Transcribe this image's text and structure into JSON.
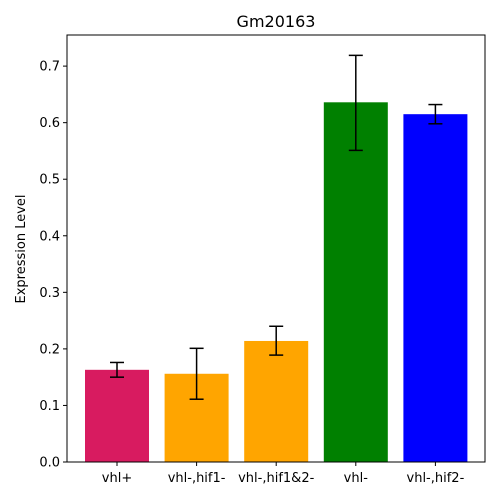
{
  "chart_data": {
    "type": "bar",
    "title": "Gm20163",
    "xlabel": "",
    "ylabel": "Expression Level",
    "ylim": [
      0,
      0.755
    ],
    "yticks": [
      0.0,
      0.1,
      0.2,
      0.3,
      0.4,
      0.5,
      0.6,
      0.7
    ],
    "ytick_labels": [
      "0.0",
      "0.1",
      "0.2",
      "0.3",
      "0.4",
      "0.5",
      "0.6",
      "0.7"
    ],
    "categories": [
      "vhl+",
      "vhl-,hif1-",
      "vhl-,hif1&2-",
      "vhl-",
      "vhl-,hif2-"
    ],
    "values": [
      0.163,
      0.156,
      0.214,
      0.636,
      0.615
    ],
    "error_low": [
      0.15,
      0.111,
      0.189,
      0.551,
      0.598
    ],
    "error_high": [
      0.176,
      0.201,
      0.24,
      0.719,
      0.632
    ],
    "colors": [
      "#d81b60",
      "#ffa500",
      "#ffa500",
      "#008000",
      "#0000ff"
    ],
    "grid": false
  }
}
